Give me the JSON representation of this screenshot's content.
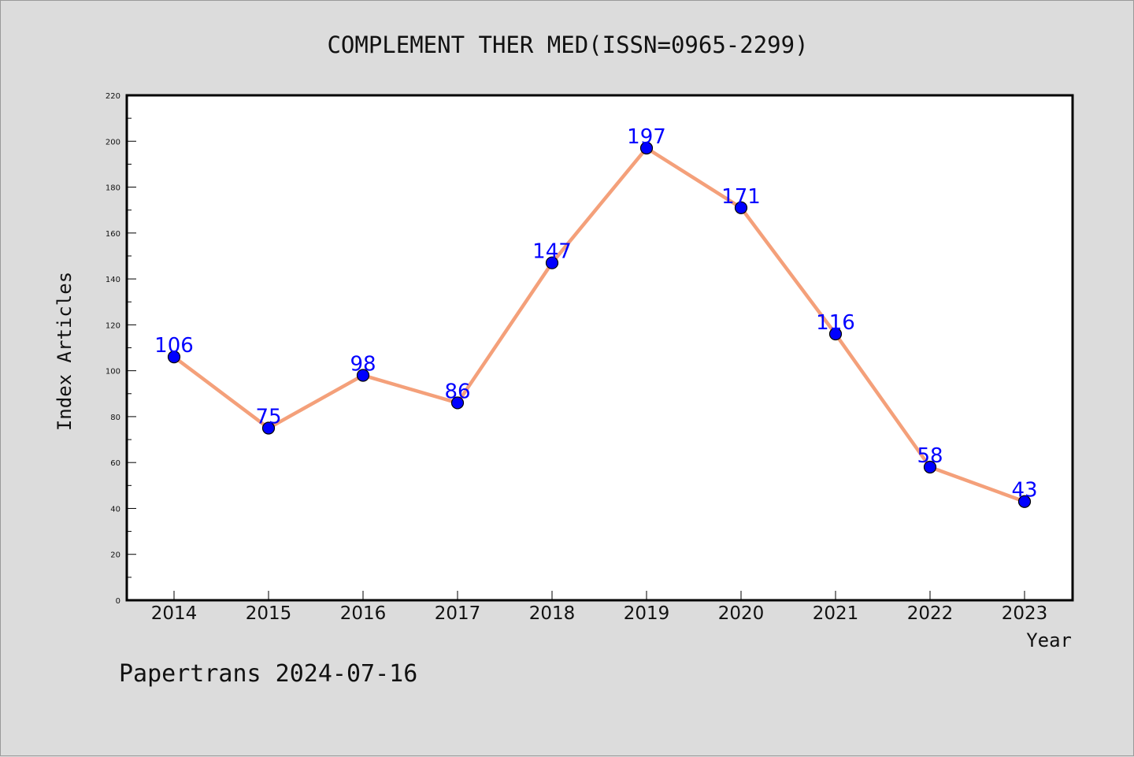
{
  "chart_data": {
    "type": "line",
    "title": "COMPLEMENT THER MED(ISSN=0965-2299)",
    "xlabel": "Year",
    "ylabel": "Index Articles",
    "categories": [
      "2014",
      "2015",
      "2016",
      "2017",
      "2018",
      "2019",
      "2020",
      "2021",
      "2022",
      "2023"
    ],
    "series": [
      {
        "values": [
          106,
          75,
          98,
          86,
          147,
          197,
          171,
          116,
          58,
          43
        ]
      }
    ],
    "ylim": [
      0,
      220
    ],
    "yticks": [
      0,
      20,
      40,
      60,
      80,
      100,
      120,
      140,
      160,
      180,
      200,
      220
    ],
    "grid": false,
    "colors": {
      "line": "#f4a07a",
      "marker": "#0000ff",
      "data_label": "#0000ff",
      "background": "#dcdcdc",
      "plot_area": "#ffffff"
    }
  },
  "footer": {
    "watermark": "Papertrans 2024-07-16"
  }
}
